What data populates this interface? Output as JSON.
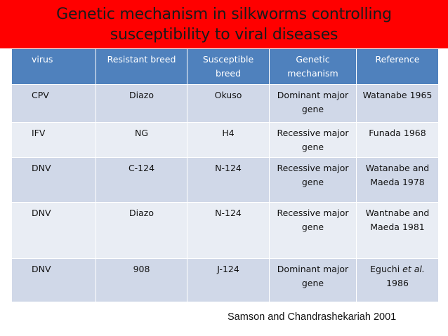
{
  "title": "Genetic mechanism in silkworms controlling susceptibility to viral diseases",
  "table": {
    "headers": [
      "virus",
      "Resistant breed",
      "Susceptible breed",
      "Genetic mechanism",
      "Reference"
    ],
    "rows": [
      {
        "virus": "CPV",
        "resistant": "Diazo",
        "susceptible": "Okuso",
        "mechanism": "Dominant major gene",
        "reference": "Watanabe 1965"
      },
      {
        "virus": "IFV",
        "resistant": "NG",
        "susceptible": "H4",
        "mechanism": "Recessive major gene",
        "reference": "Funada 1968"
      },
      {
        "virus": "DNV",
        "resistant": "C-124",
        "susceptible": "N-124",
        "mechanism": "Recessive major gene",
        "reference": "Watanabe and Maeda 1978"
      },
      {
        "virus": "DNV",
        "resistant": "Diazo",
        "susceptible": "N-124",
        "mechanism": "Recessive major gene",
        "reference": "Wantnabe and Maeda 1981"
      },
      {
        "virus": "DNV",
        "resistant": "908",
        "susceptible": "J-124",
        "mechanism": "Dominant major gene",
        "reference_prefix": "Eguchi",
        "reference_italic": "et al.",
        "reference_year": "1986"
      }
    ]
  },
  "citation": "Samson and Chandrashekariah 2001",
  "colors": {
    "title_band": "#ff0000",
    "header_row": "#4f81bd",
    "row_dark": "#d0d8e8",
    "row_light": "#e9edf4"
  }
}
